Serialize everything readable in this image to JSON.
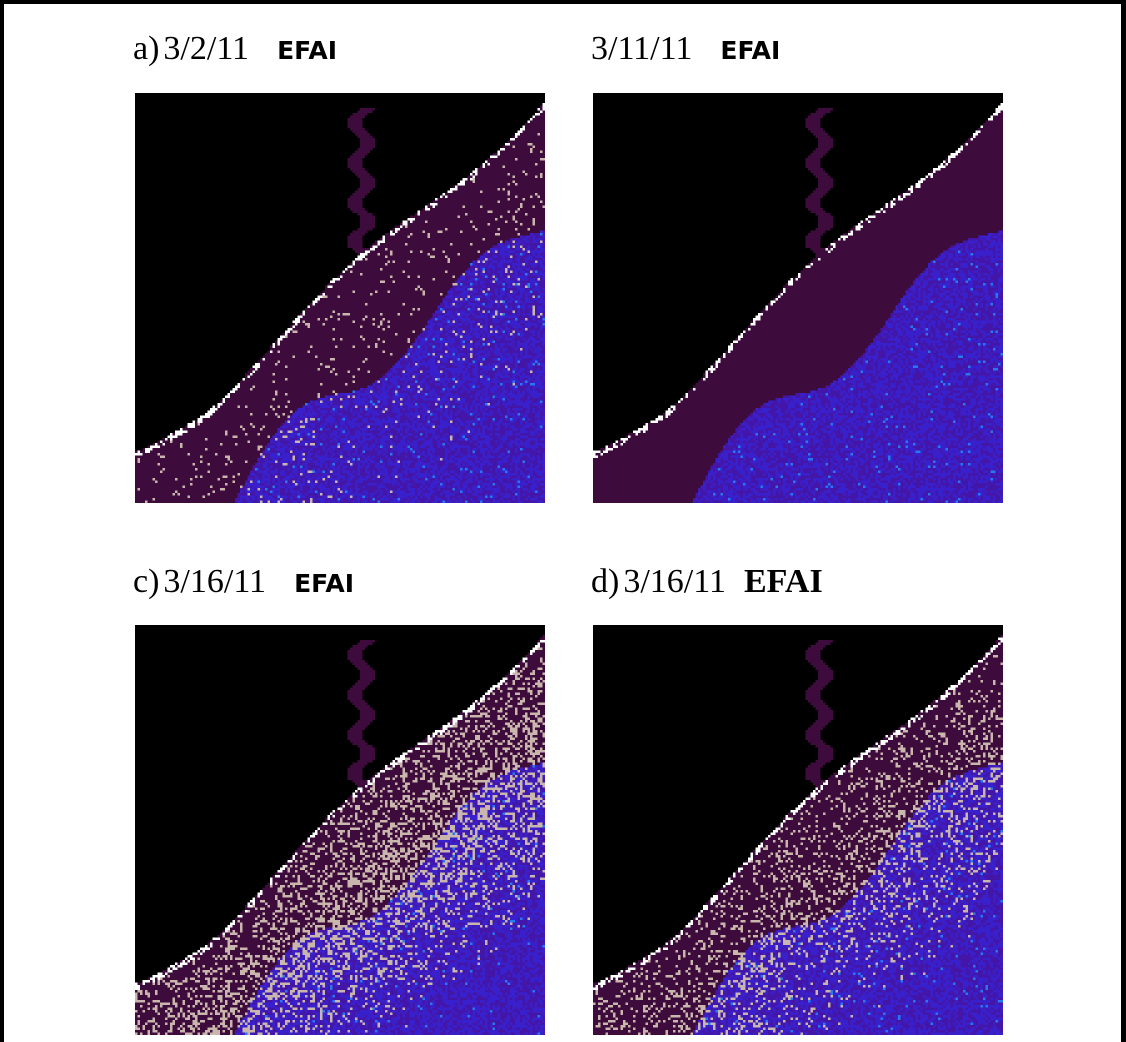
{
  "panels": [
    {
      "label": "a)",
      "date": "3/2/11",
      "index": "EFAI",
      "index_style": "sans",
      "algae_level": 0.12,
      "blue_level": 0.55
    },
    {
      "label": "",
      "date": "3/11/11",
      "index": "EFAI",
      "index_style": "sans",
      "algae_level": 0.0,
      "blue_level": 0.6
    },
    {
      "label": "c)",
      "date": "3/16/11",
      "index": "EFAI",
      "index_style": "sans",
      "algae_level": 0.7,
      "blue_level": 0.45
    },
    {
      "label": "d)",
      "date": "3/16/11",
      "index": "EFAI",
      "index_style": "serif",
      "algae_level": 0.45,
      "blue_level": 0.7
    }
  ],
  "colors": {
    "land": "#000000",
    "nearshore_water": "#3e0b3d",
    "offshore_water": "#4416a8",
    "deep_water": "#3820cc",
    "algae": "#c9b6ad",
    "coastline": "#ffffff"
  }
}
